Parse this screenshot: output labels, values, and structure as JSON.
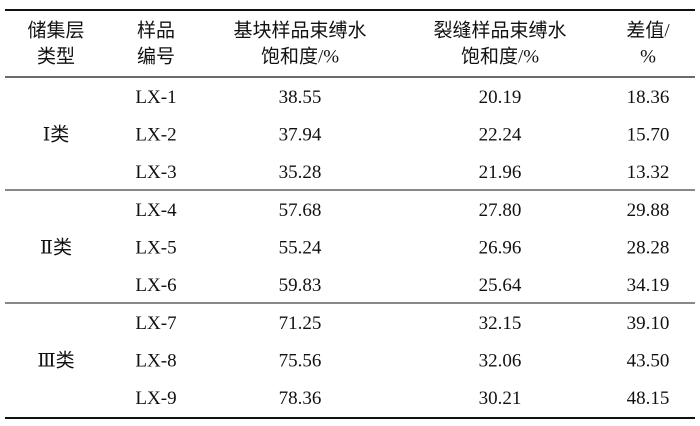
{
  "table": {
    "header": [
      [
        "储集层",
        "类型"
      ],
      [
        "样品",
        "编号"
      ],
      [
        "基块样品束缚水",
        "饱和度/%"
      ],
      [
        "裂缝样品束缚水",
        "饱和度/%"
      ],
      [
        "差值/",
        "%"
      ]
    ],
    "groups": [
      {
        "type": "Ⅰ类",
        "rows": [
          [
            "LX-1",
            "38.55",
            "20.19",
            "18.36"
          ],
          [
            "LX-2",
            "37.94",
            "22.24",
            "15.70"
          ],
          [
            "LX-3",
            "35.28",
            "21.96",
            "13.32"
          ]
        ]
      },
      {
        "type": "Ⅱ类",
        "rows": [
          [
            "LX-4",
            "57.68",
            "27.80",
            "29.88"
          ],
          [
            "LX-5",
            "55.24",
            "26.96",
            "28.28"
          ],
          [
            "LX-6",
            "59.83",
            "25.64",
            "34.19"
          ]
        ]
      },
      {
        "type": "Ⅲ类",
        "rows": [
          [
            "LX-7",
            "71.25",
            "32.15",
            "39.10"
          ],
          [
            "LX-8",
            "75.56",
            "32.06",
            "43.50"
          ],
          [
            "LX-9",
            "78.36",
            "30.21",
            "48.15"
          ]
        ]
      }
    ]
  }
}
